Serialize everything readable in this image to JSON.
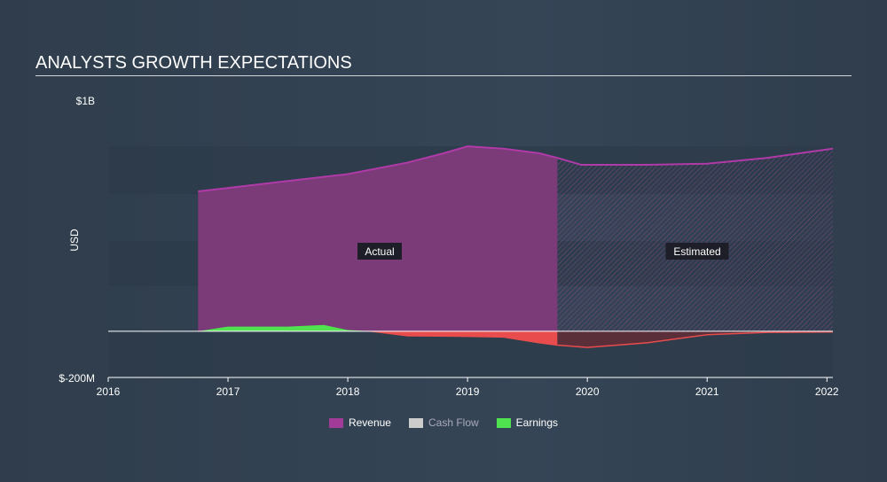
{
  "title": "ANALYSTS GROWTH EXPECTATIONS",
  "chart_data": {
    "type": "area",
    "title": "ANALYSTS GROWTH EXPECTATIONS",
    "ylabel": "USD",
    "ytick_labels": [
      "$1B",
      "$-200M"
    ],
    "ylim": [
      -0.2,
      1.0
    ],
    "xlim": [
      2016,
      2022.05
    ],
    "xtick_labels": [
      "2016",
      "2017",
      "2018",
      "2019",
      "2020",
      "2021",
      "2022"
    ],
    "actual_label": "Actual",
    "estimated_label": "Estimated",
    "estimate_start": 2019.75,
    "series": [
      {
        "name": "Revenue",
        "color": "#a23a98",
        "x": [
          2016.75,
          2017,
          2017.5,
          2018,
          2018.5,
          2018.8,
          2019,
          2019.3,
          2019.6,
          2019.75,
          2019.95,
          2020.5,
          2021,
          2021.5,
          2022.05
        ],
        "values": [
          0.605,
          0.62,
          0.65,
          0.68,
          0.73,
          0.77,
          0.8,
          0.79,
          0.77,
          0.75,
          0.72,
          0.72,
          0.725,
          0.75,
          0.79
        ]
      },
      {
        "name": "Cash Flow",
        "color": "#cccccc",
        "x": [],
        "values": []
      },
      {
        "name": "Earnings",
        "color": "#4fe34f",
        "x": [
          2016.75,
          2017,
          2017.5,
          2017.8,
          2018,
          2018.2,
          2018.5,
          2019,
          2019.3,
          2019.6,
          2019.75,
          2020,
          2020.5,
          2021,
          2021.5,
          2022.05
        ],
        "values": [
          0.0,
          0.02,
          0.02,
          0.027,
          0.005,
          0.0,
          -0.02,
          -0.022,
          -0.025,
          -0.05,
          -0.06,
          -0.07,
          -0.05,
          -0.015,
          -0.005,
          -0.003
        ]
      }
    ],
    "legend": [
      "Revenue",
      "Cash Flow",
      "Earnings"
    ],
    "legend_position": "bottom"
  }
}
